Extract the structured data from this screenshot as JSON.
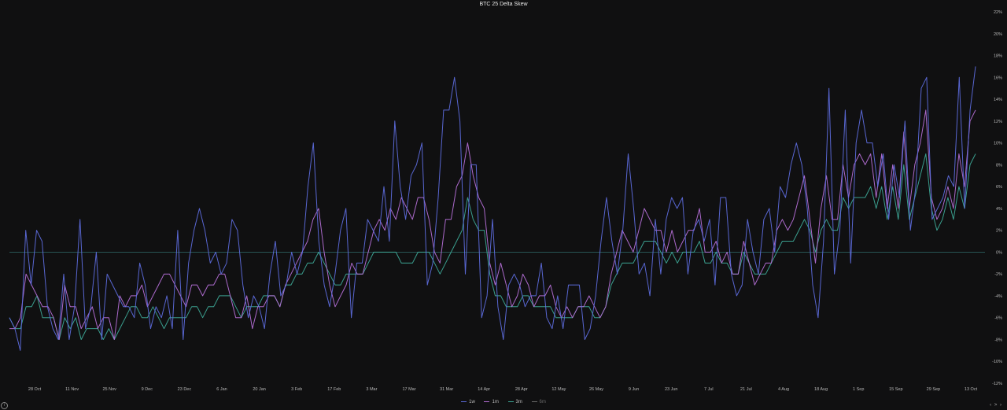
{
  "chart_data": {
    "type": "line",
    "title": "BTC 25 Delta Skew",
    "y_ticks": [
      "22%",
      "20%",
      "18%",
      "16%",
      "14%",
      "12%",
      "10%",
      "8%",
      "6%",
      "4%",
      "2%",
      "0%",
      "-2%",
      "-4%",
      "-6%",
      "-8%",
      "-10%",
      "-12%"
    ],
    "ylim": [
      -12,
      22
    ],
    "x_ticks": [
      "28 Oct",
      "11 Nov",
      "25 Nov",
      "9 Dec",
      "23 Dec",
      "6 Jan",
      "20 Jan",
      "3 Feb",
      "17 Feb",
      "3 Mar",
      "17 Mar",
      "31 Mar",
      "14 Apr",
      "28 Apr",
      "12 May",
      "26 May",
      "9 Jun",
      "23 Jun",
      "7 Jul",
      "21 Jul",
      "4 Aug",
      "18 Aug",
      "1 Sep",
      "15 Sep",
      "29 Sep",
      "13 Oct"
    ],
    "grid": false,
    "zero_line": true,
    "legend_position": "bottom-center",
    "series": [
      {
        "name": "1w",
        "color": "#5d6bdc",
        "values": [
          -6,
          -7,
          -9,
          2,
          -3,
          2,
          1,
          -5,
          -7,
          -8,
          -2,
          -8,
          -5,
          3,
          -7,
          -5,
          0,
          -8,
          -2,
          -3,
          -4,
          -5,
          -5,
          -6,
          -1,
          -3,
          -7,
          -5,
          -6,
          -4,
          -7,
          2,
          -8,
          -1,
          2,
          4,
          2,
          -1,
          0,
          -2,
          -1,
          3,
          2,
          -3,
          -6,
          -4,
          -5,
          -7,
          -2,
          1,
          -4,
          -3,
          0,
          -2,
          0,
          6,
          10,
          1,
          -3,
          -5,
          -2,
          2,
          4,
          -6,
          -1,
          -1,
          3,
          2,
          1,
          6,
          1,
          12,
          6,
          3,
          7,
          8,
          10,
          -3,
          -1,
          5,
          13,
          13,
          16,
          12,
          -2,
          8,
          8,
          -6,
          -4,
          3,
          -5,
          -8,
          -3,
          -2,
          -3,
          -5,
          -4,
          -4,
          -1,
          -6,
          -7,
          -4,
          -7,
          -3,
          -3,
          -3,
          -8,
          -7,
          -4,
          1,
          5,
          1,
          -2,
          2,
          9,
          4,
          -2,
          -1,
          -4,
          3,
          -2,
          3,
          5,
          4,
          5,
          -2,
          2,
          3,
          1,
          3,
          -3,
          5,
          5,
          -2,
          -4,
          -3,
          3,
          0,
          -2,
          3,
          4,
          0,
          6,
          5,
          8,
          10,
          8,
          4,
          -3,
          -6,
          1,
          15,
          -2,
          2,
          13,
          -1,
          10,
          13,
          10,
          10,
          6,
          9,
          3,
          8,
          5,
          12,
          2,
          6,
          15,
          16,
          3,
          4,
          5,
          7,
          6,
          16,
          4,
          13,
          17
        ]
      },
      {
        "name": "1m",
        "color": "#b46fd6",
        "values": [
          -7,
          -7,
          -6,
          -2,
          -3,
          -4,
          -5,
          -5,
          -6,
          -8,
          -3,
          -5,
          -5,
          -7,
          -6,
          -5,
          -7,
          -6,
          -6,
          -8,
          -4,
          -5,
          -4,
          -4,
          -3,
          -5,
          -4,
          -3,
          -2,
          -2,
          -3,
          -4,
          -5,
          -3,
          -3,
          -4,
          -3,
          -3,
          -2,
          -2,
          -4,
          -6,
          -6,
          -4,
          -7,
          -5,
          -5,
          -4,
          -4,
          -5,
          -3,
          -2,
          -1,
          0,
          1,
          3,
          4,
          0,
          -3,
          -5,
          -4,
          -3,
          -1,
          -2,
          -2,
          0,
          2,
          3,
          2,
          4,
          3,
          5,
          4,
          3,
          5,
          5,
          3,
          0,
          -1,
          3,
          3,
          6,
          7,
          10,
          7,
          5,
          4,
          -1,
          -3,
          -1,
          -3,
          -5,
          -4,
          -2,
          -3,
          -5,
          -4,
          -4,
          -3,
          -5,
          -6,
          -5,
          -6,
          -5,
          -5,
          -4,
          -5,
          -6,
          -5,
          -2,
          0,
          2,
          1,
          0,
          2,
          4,
          3,
          2,
          2,
          0,
          2,
          0,
          1,
          2,
          2,
          4,
          0,
          0,
          1,
          -1,
          0,
          -2,
          -2,
          1,
          -1,
          -3,
          -2,
          -1,
          -1,
          2,
          3,
          2,
          3,
          5,
          7,
          3,
          -1,
          4,
          7,
          3,
          3,
          8,
          5,
          8,
          9,
          8,
          9,
          5,
          9,
          4,
          8,
          4,
          11,
          4,
          8,
          10,
          13,
          5,
          3,
          4,
          6,
          4,
          9,
          6,
          12,
          13
        ]
      },
      {
        "name": "3m",
        "color": "#3da696",
        "values": [
          -6,
          -7,
          -7,
          -5,
          -5,
          -4,
          -6,
          -6,
          -6,
          -8,
          -6,
          -7,
          -6,
          -8,
          -7,
          -7,
          -7,
          -8,
          -7,
          -8,
          -7,
          -6,
          -5,
          -5,
          -6,
          -6,
          -5,
          -6,
          -7,
          -6,
          -6,
          -6,
          -6,
          -5,
          -5,
          -6,
          -5,
          -5,
          -4,
          -4,
          -4,
          -5,
          -6,
          -5,
          -5,
          -5,
          -4,
          -4,
          -4,
          -5,
          -3,
          -3,
          -2,
          -2,
          -1,
          -1,
          0,
          -1,
          -2,
          -3,
          -3,
          -2,
          -2,
          -2,
          -2,
          -1,
          0,
          0,
          0,
          0,
          0,
          -1,
          -1,
          -1,
          0,
          0,
          0,
          -1,
          -2,
          -1,
          0,
          1,
          2,
          5,
          3,
          2,
          2,
          -2,
          -4,
          -4,
          -5,
          -5,
          -5,
          -4,
          -4,
          -5,
          -5,
          -5,
          -5,
          -6,
          -6,
          -6,
          -6,
          -5,
          -5,
          -5,
          -6,
          -6,
          -5,
          -3,
          -2,
          -1,
          -1,
          -1,
          0,
          1,
          1,
          1,
          0,
          -1,
          0,
          -1,
          0,
          0,
          0,
          1,
          -1,
          -1,
          0,
          -1,
          -1,
          -2,
          -2,
          0,
          -1,
          -2,
          -2,
          -2,
          -1,
          0,
          1,
          1,
          1,
          2,
          3,
          2,
          0,
          2,
          3,
          2,
          2,
          5,
          4,
          5,
          5,
          5,
          6,
          4,
          6,
          3,
          6,
          3,
          8,
          3,
          5,
          7,
          9,
          4,
          2,
          3,
          5,
          3,
          6,
          4,
          8,
          9
        ]
      },
      {
        "name": "6m",
        "color": "#6b6b6b",
        "values": []
      }
    ]
  },
  "legend": {
    "labels": [
      "1w",
      "1m",
      "3m",
      "6m"
    ]
  },
  "nav": {
    "arrows": "‹ > ›"
  }
}
